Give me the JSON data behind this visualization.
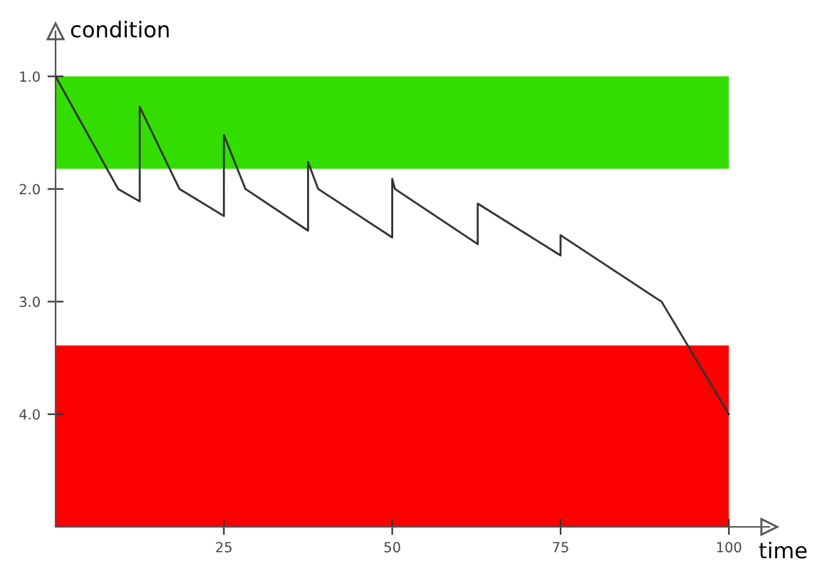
{
  "chart_data": {
    "type": "line",
    "xlabel": "time",
    "ylabel": "condition",
    "x": [
      0,
      9.3,
      12.5,
      12.5,
      18.4,
      25,
      25,
      28.2,
      37.5,
      37.5,
      39,
      50,
      50,
      50.4,
      62.7,
      62.7,
      75,
      75,
      89.2,
      90,
      100
    ],
    "series": [
      {
        "color": "#333333",
        "values": [
          1.0,
          2.0,
          2.11,
          1.27,
          2.0,
          2.24,
          1.52,
          2.0,
          2.37,
          1.76,
          2.0,
          2.43,
          1.91,
          2.0,
          2.49,
          2.13,
          2.59,
          2.41,
          2.97,
          3.0,
          4.0
        ]
      }
    ],
    "xlim": [
      0,
      106
    ],
    "ylim": [
      5.0,
      0.6
    ],
    "xticks": [
      25,
      50,
      75,
      100
    ],
    "yticks": [
      {
        "value": 1.0,
        "label": "1.0"
      },
      {
        "value": 2.0,
        "label": "2.0"
      },
      {
        "value": 3.0,
        "label": "3.0"
      },
      {
        "value": 4.0,
        "label": "4.0"
      }
    ],
    "bands": [
      {
        "axis": "y",
        "from": 1.0,
        "to": 1.82,
        "color": "#33dd00"
      },
      {
        "axis": "y",
        "from": 3.39,
        "to": 5.0,
        "color": "#ff0000"
      }
    ],
    "grid": false,
    "legend": false,
    "marker": "none",
    "line_style": "solid"
  }
}
